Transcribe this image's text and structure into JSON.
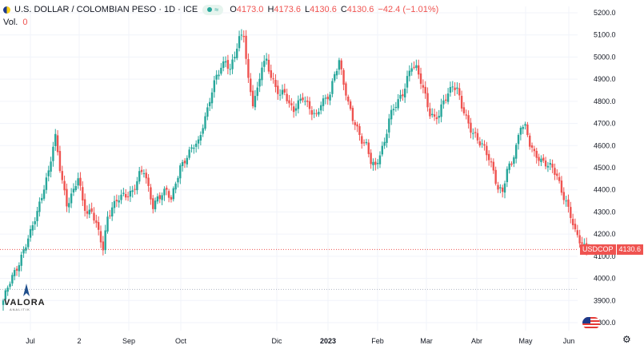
{
  "header": {
    "title": "U.S. DOLLAR / COLOMBIAN PESO · 1D · ICE",
    "status_badge": "≈",
    "open": "4173.0",
    "high": "4173.6",
    "low": "4130.6",
    "close": "4130.6",
    "change": "−42.4 (−1.01%)",
    "volume_label": "Vol.",
    "volume_value": "0"
  },
  "logo": {
    "name": "VALORA",
    "sub": "ANALITIK"
  },
  "price_tag": {
    "symbol": "USDCOP",
    "price": "4130.6"
  },
  "colors": {
    "up": "#26a69a",
    "down": "#ef5350",
    "grid": "#f0f3fa",
    "axis_text": "#131722"
  },
  "chart_data": {
    "type": "candlestick",
    "title": "U.S. DOLLAR / COLOMBIAN PESO · 1D · ICE",
    "ylim": [
      3800,
      5200
    ],
    "y_ticks": [
      "5200.0",
      "5100.0",
      "5000.0",
      "4900.0",
      "4800.0",
      "4700.0",
      "4600.0",
      "4500.0",
      "4400.0",
      "4300.0",
      "4200.0",
      "4100.0",
      "4000.0",
      "3900.0",
      "3800.0"
    ],
    "x_ticks": [
      "Jul",
      "2",
      "Sep",
      "Oct",
      "Dic",
      "2023",
      "Feb",
      "Mar",
      "Abr",
      "May",
      "Jun"
    ],
    "last_price": 4130.6,
    "reference_line": 3950,
    "anchors": [
      [
        0,
        3900
      ],
      [
        3,
        3980
      ],
      [
        6,
        4050
      ],
      [
        9,
        4130
      ],
      [
        12,
        4200
      ],
      [
        15,
        4300
      ],
      [
        18,
        4420
      ],
      [
        20,
        4480
      ],
      [
        22,
        4590
      ],
      [
        23,
        4630
      ],
      [
        25,
        4500
      ],
      [
        28,
        4340
      ],
      [
        31,
        4390
      ],
      [
        33,
        4450
      ],
      [
        35,
        4350
      ],
      [
        37,
        4300
      ],
      [
        39,
        4310
      ],
      [
        42,
        4200
      ],
      [
        44,
        4130
      ],
      [
        46,
        4280
      ],
      [
        48,
        4330
      ],
      [
        51,
        4360
      ],
      [
        54,
        4370
      ],
      [
        57,
        4400
      ],
      [
        60,
        4470
      ],
      [
        62,
        4480
      ],
      [
        64,
        4400
      ],
      [
        66,
        4330
      ],
      [
        68,
        4370
      ],
      [
        70,
        4380
      ],
      [
        72,
        4390
      ],
      [
        74,
        4350
      ],
      [
        76,
        4440
      ],
      [
        78,
        4510
      ],
      [
        80,
        4530
      ],
      [
        82,
        4560
      ],
      [
        84,
        4600
      ],
      [
        86,
        4620
      ],
      [
        88,
        4700
      ],
      [
        90,
        4760
      ],
      [
        92,
        4840
      ],
      [
        94,
        4910
      ],
      [
        96,
        4960
      ],
      [
        98,
        4990
      ],
      [
        100,
        4940
      ],
      [
        102,
        5000
      ],
      [
        104,
        5080
      ],
      [
        106,
        5110
      ],
      [
        108,
        4900
      ],
      [
        110,
        4790
      ],
      [
        112,
        4840
      ],
      [
        114,
        4960
      ],
      [
        116,
        4990
      ],
      [
        118,
        4920
      ],
      [
        120,
        4860
      ],
      [
        122,
        4820
      ],
      [
        124,
        4840
      ],
      [
        126,
        4790
      ],
      [
        128,
        4770
      ],
      [
        130,
        4790
      ],
      [
        132,
        4810
      ],
      [
        134,
        4780
      ],
      [
        136,
        4760
      ],
      [
        138,
        4740
      ],
      [
        140,
        4790
      ],
      [
        142,
        4800
      ],
      [
        144,
        4830
      ],
      [
        146,
        4930
      ],
      [
        148,
        4990
      ],
      [
        150,
        4880
      ],
      [
        152,
        4780
      ],
      [
        154,
        4720
      ],
      [
        156,
        4680
      ],
      [
        158,
        4630
      ],
      [
        160,
        4600
      ],
      [
        162,
        4520
      ],
      [
        164,
        4500
      ],
      [
        166,
        4570
      ],
      [
        168,
        4620
      ],
      [
        170,
        4720
      ],
      [
        172,
        4760
      ],
      [
        174,
        4800
      ],
      [
        176,
        4840
      ],
      [
        178,
        4910
      ],
      [
        180,
        4960
      ],
      [
        182,
        4940
      ],
      [
        184,
        4890
      ],
      [
        186,
        4830
      ],
      [
        188,
        4750
      ],
      [
        190,
        4720
      ],
      [
        192,
        4730
      ],
      [
        194,
        4800
      ],
      [
        196,
        4840
      ],
      [
        198,
        4880
      ],
      [
        200,
        4850
      ],
      [
        202,
        4770
      ],
      [
        204,
        4720
      ],
      [
        206,
        4680
      ],
      [
        208,
        4650
      ],
      [
        210,
        4610
      ],
      [
        212,
        4580
      ],
      [
        214,
        4540
      ],
      [
        216,
        4490
      ],
      [
        218,
        4410
      ],
      [
        220,
        4390
      ],
      [
        222,
        4480
      ],
      [
        224,
        4520
      ],
      [
        226,
        4600
      ],
      [
        228,
        4700
      ],
      [
        230,
        4680
      ],
      [
        232,
        4600
      ],
      [
        234,
        4560
      ],
      [
        236,
        4550
      ],
      [
        238,
        4530
      ],
      [
        240,
        4510
      ],
      [
        242,
        4490
      ],
      [
        244,
        4460
      ],
      [
        246,
        4400
      ],
      [
        248,
        4350
      ],
      [
        250,
        4280
      ],
      [
        252,
        4200
      ],
      [
        254,
        4170
      ],
      [
        256,
        4150
      ],
      [
        258,
        4130.6
      ]
    ]
  }
}
